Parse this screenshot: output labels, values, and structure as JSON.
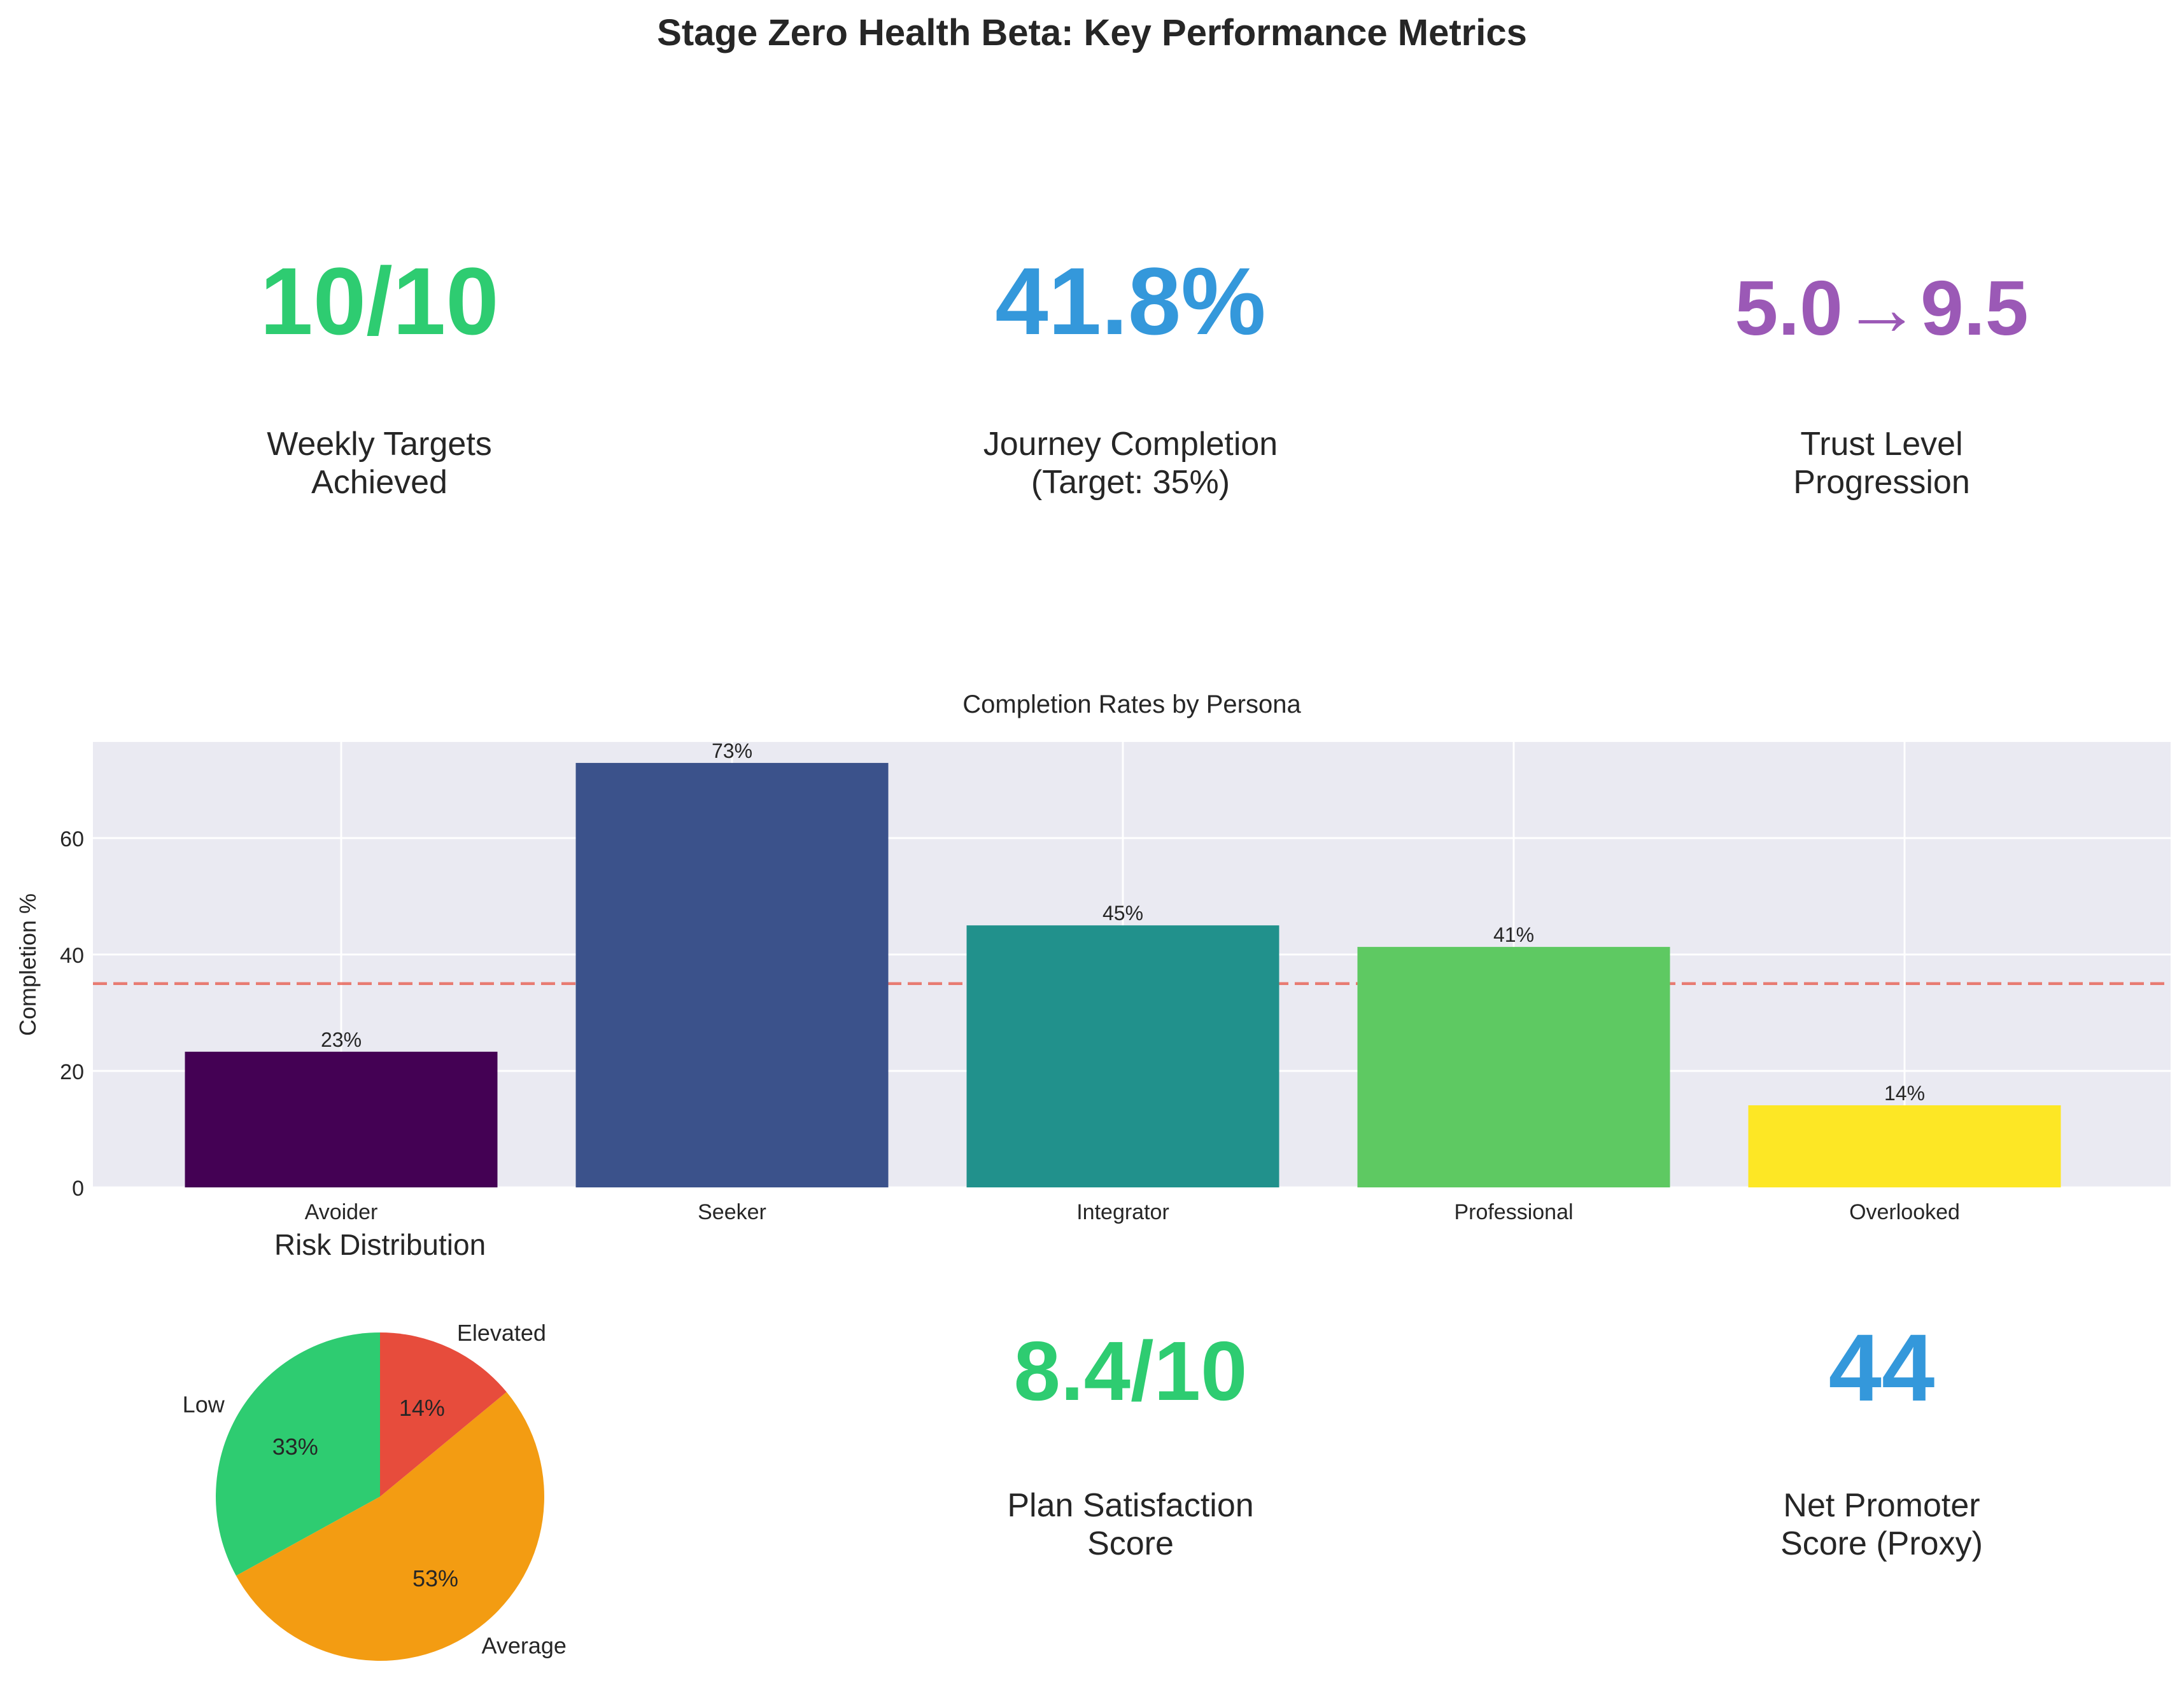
{
  "title": "Stage Zero Health Beta: Key Performance Metrics",
  "colors": {
    "green": "#2ecc71",
    "blue": "#3498db",
    "purple": "#9b59b6",
    "red_line": "#e74c3c"
  },
  "kpis": [
    {
      "value": "10/10",
      "label_line1": "Weekly Targets",
      "label_line2": "Achieved",
      "color": "#2ecc71"
    },
    {
      "value": "41.8%",
      "label_line1": "Journey Completion",
      "label_line2": "(Target: 35%)",
      "color": "#3498db"
    },
    {
      "value": "5.0→9.5",
      "label_line1": "Trust Level",
      "label_line2": "Progression",
      "color": "#9b59b6"
    },
    {
      "value": "8.4/10",
      "label_line1": "Plan Satisfaction",
      "label_line2": "Score",
      "color": "#2ecc71"
    },
    {
      "value": "44",
      "label_line1": "Net Promoter",
      "label_line2": "Score (Proxy)",
      "color": "#3498db"
    }
  ],
  "chart_data": [
    {
      "type": "bar",
      "title": "Completion Rates by Persona",
      "ylabel": "Completion %",
      "categories": [
        "Avoider",
        "Seeker",
        "Integrator",
        "Professional",
        "Overlooked"
      ],
      "values": [
        23.3,
        72.9,
        45.0,
        41.3,
        14.1
      ],
      "data_labels": [
        "23%",
        "73%",
        "45%",
        "41%",
        "14%"
      ],
      "bar_colors": [
        "#440154",
        "#3b528b",
        "#21918c",
        "#5ec962",
        "#fde725"
      ],
      "ylim": [
        0,
        76.5
      ],
      "yticks": [
        0,
        20,
        40,
        60
      ],
      "reference_line": {
        "y": 35,
        "color": "#e74c3c",
        "style": "dashed"
      },
      "grid": true
    },
    {
      "type": "pie",
      "title": "Risk Distribution",
      "labels": [
        "Low",
        "Average",
        "Elevated"
      ],
      "values": [
        33,
        53,
        14
      ],
      "pct_labels": [
        "33%",
        "53%",
        "14%"
      ],
      "colors": [
        "#2ecc71",
        "#f39c12",
        "#e74c3c"
      ]
    }
  ]
}
